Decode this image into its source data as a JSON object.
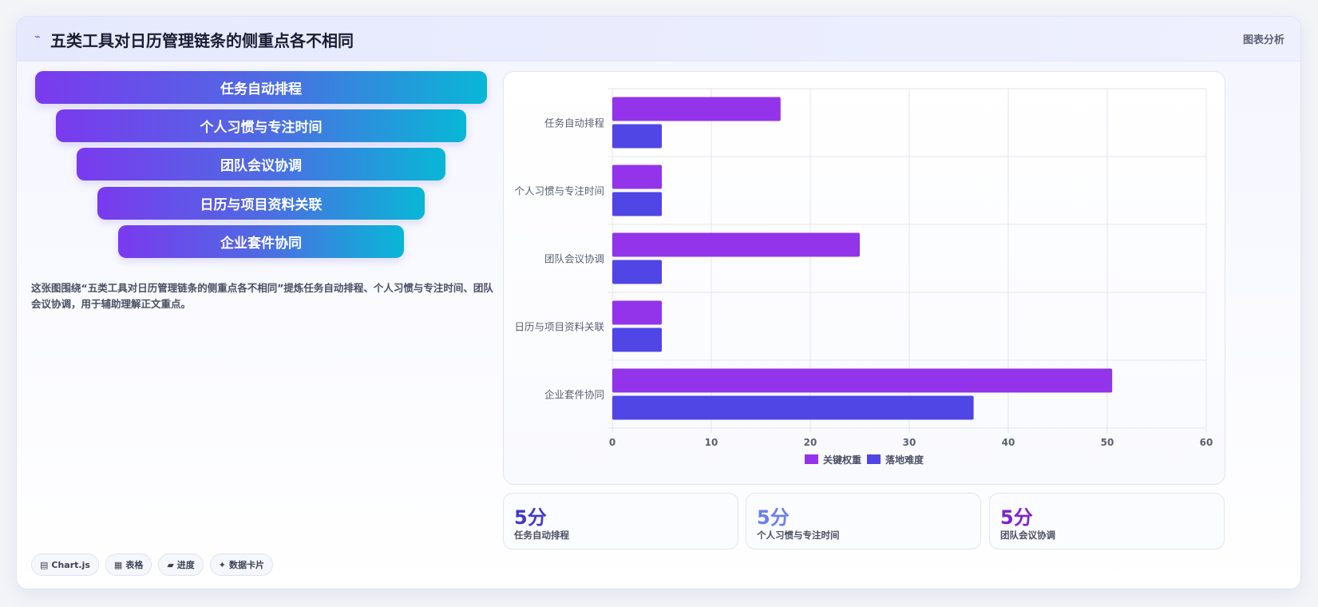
{
  "header": {
    "icon": "chart-line-icon",
    "title": "五类工具对日历管理链条的侧重点各不相同",
    "right_label": "图表分析"
  },
  "funnel": {
    "items": [
      "任务自动排程",
      "个人习惯与专注时间",
      "团队会议协调",
      "日历与项目资料关联",
      "企业套件协同"
    ]
  },
  "description": "这张图围绕“五类工具对日历管理链条的侧重点各不相同”提炼任务自动排程、个人习惯与专注时间、团队会议协调，用于辅助理解正文重点。",
  "tags": [
    {
      "icon": "▤",
      "label": "Chart.js"
    },
    {
      "icon": "▦",
      "label": "表格"
    },
    {
      "icon": "▰",
      "label": "进度"
    },
    {
      "icon": "✦",
      "label": "数据卡片"
    }
  ],
  "chart_data": {
    "type": "bar",
    "orientation": "horizontal",
    "categories": [
      "任务自动排程",
      "个人习惯与专注时间",
      "团队会议协调",
      "日历与项目资料关联",
      "企业套件协同"
    ],
    "series": [
      {
        "name": "关键权重",
        "color": "#9333ea",
        "values": [
          17,
          5,
          25,
          5,
          50.5
        ]
      },
      {
        "name": "落地难度",
        "color": "#4f46e5",
        "values": [
          5,
          5,
          5,
          5,
          36.5
        ]
      }
    ],
    "xlim": [
      0,
      60
    ],
    "xticks": [
      0,
      10,
      20,
      30,
      40,
      50,
      60
    ],
    "grid": true,
    "legend": "bottom"
  },
  "stats": [
    {
      "value": "5分",
      "label": "任务自动排程",
      "color": "#4338ca"
    },
    {
      "value": "5分",
      "label": "个人习惯与专注时间",
      "color": "#6b7df0"
    },
    {
      "value": "5分",
      "label": "团队会议协调",
      "color": "#7e22ce"
    }
  ]
}
